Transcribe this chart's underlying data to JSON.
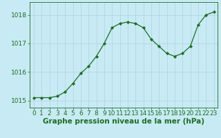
{
  "x": [
    0,
    1,
    2,
    3,
    4,
    5,
    6,
    7,
    8,
    9,
    10,
    11,
    12,
    13,
    14,
    15,
    16,
    17,
    18,
    19,
    20,
    21,
    22,
    23
  ],
  "y": [
    1015.1,
    1015.1,
    1015.1,
    1015.15,
    1015.3,
    1015.6,
    1015.95,
    1016.2,
    1016.55,
    1017.0,
    1017.55,
    1017.7,
    1017.75,
    1017.7,
    1017.55,
    1017.15,
    1016.9,
    1016.65,
    1016.55,
    1016.65,
    1016.9,
    1017.65,
    1018.0,
    1018.1
  ],
  "line_color": "#1a6e1a",
  "marker_color": "#1a6e1a",
  "bg_color": "#c8eaf5",
  "grid_color": "#b0cfe0",
  "xlabel": "Graphe pression niveau de la mer (hPa)",
  "xlabel_fontsize": 7.5,
  "tick_fontsize": 6.5,
  "ylim": [
    1014.75,
    1018.45
  ],
  "yticks": [
    1015,
    1016,
    1017,
    1018
  ],
  "xlim": [
    -0.5,
    23.5
  ],
  "xticks": [
    0,
    1,
    2,
    3,
    4,
    5,
    6,
    7,
    8,
    9,
    10,
    11,
    12,
    13,
    14,
    15,
    16,
    17,
    18,
    19,
    20,
    21,
    22,
    23
  ]
}
